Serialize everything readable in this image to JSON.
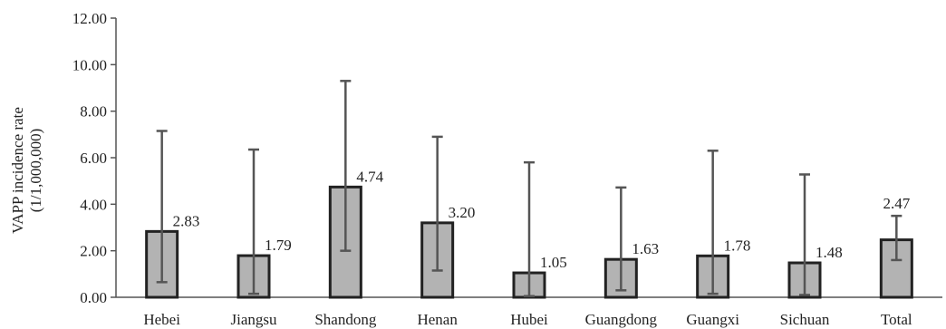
{
  "chart_data": {
    "type": "bar",
    "categories": [
      "Hebei",
      "Jiangsu",
      "Shandong",
      "Henan",
      "Hubei",
      "Guangdong",
      "Guangxi",
      "Sichuan",
      "Total"
    ],
    "values": [
      2.83,
      1.79,
      4.74,
      3.2,
      1.05,
      1.63,
      1.78,
      1.48,
      2.47
    ],
    "value_labels": [
      "2.83",
      "1.79",
      "4.74",
      "3.20",
      "1.05",
      "1.63",
      "1.78",
      "1.48",
      "2.47"
    ],
    "error_low": [
      0.65,
      0.15,
      2.0,
      1.15,
      0.05,
      0.3,
      0.15,
      0.1,
      1.6
    ],
    "error_high": [
      7.15,
      6.35,
      9.3,
      6.9,
      5.8,
      4.72,
      6.3,
      5.28,
      3.5
    ],
    "ylabel_lines": [
      "VAPP incidence rate",
      "(1/1,000,000)"
    ],
    "xlabel": "",
    "title": "",
    "ylim": [
      0,
      12
    ],
    "y_ticks": [
      "0.00",
      "2.00",
      "4.00",
      "6.00",
      "8.00",
      "10.00",
      "12.00"
    ],
    "grid": false,
    "colors": {
      "bar_fill": "#b3b3b3",
      "bar_stroke": "#222222",
      "error_bar": "#555555",
      "axis": "#555555"
    }
  }
}
